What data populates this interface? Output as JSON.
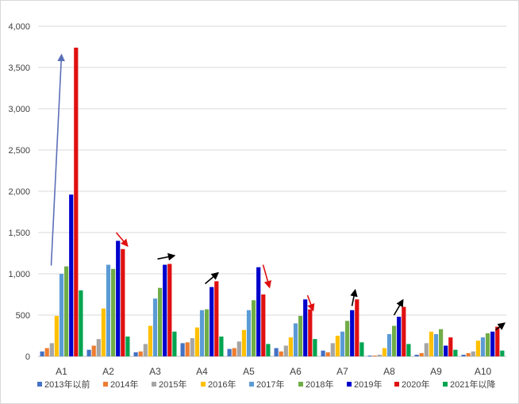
{
  "chart_data": {
    "type": "bar",
    "title": "",
    "xlabel": "",
    "ylabel": "",
    "ylim": [
      0,
      4000
    ],
    "yticks": [
      0,
      500,
      1000,
      1500,
      2000,
      2500,
      3000,
      3500,
      4000
    ],
    "ytick_labels": [
      "0",
      "500",
      "1,000",
      "1,500",
      "2,000",
      "2,500",
      "3,000",
      "3,500",
      "4,000"
    ],
    "grid": "horizontal",
    "legend_position": "bottom",
    "categories": [
      "A1",
      "A2",
      "A3",
      "A4",
      "A5",
      "A6",
      "A7",
      "A8",
      "A9",
      "A10"
    ],
    "series": [
      {
        "name": "2013年以前",
        "color": "#4472c4",
        "values": [
          60,
          80,
          50,
          160,
          90,
          100,
          70,
          10,
          20,
          20
        ]
      },
      {
        "name": "2014年",
        "color": "#ed7d31",
        "values": [
          100,
          130,
          60,
          170,
          100,
          60,
          50,
          10,
          40,
          40
        ]
      },
      {
        "name": "2015年",
        "color": "#a5a5a5",
        "values": [
          160,
          210,
          150,
          220,
          180,
          130,
          160,
          20,
          160,
          60
        ]
      },
      {
        "name": "2016年",
        "color": "#ffc000",
        "values": [
          490,
          580,
          370,
          350,
          320,
          230,
          250,
          100,
          300,
          190
        ]
      },
      {
        "name": "2017年",
        "color": "#5b9bd5",
        "values": [
          1000,
          1110,
          700,
          560,
          560,
          400,
          300,
          270,
          270,
          230
        ]
      },
      {
        "name": "2018年",
        "color": "#70ad47",
        "values": [
          1090,
          1060,
          830,
          570,
          680,
          490,
          430,
          370,
          330,
          280
        ]
      },
      {
        "name": "2019年",
        "color": "#0000cc",
        "values": [
          1960,
          1400,
          1110,
          840,
          1080,
          690,
          560,
          480,
          130,
          300
        ]
      },
      {
        "name": "2020年",
        "color": "#e01010",
        "values": [
          3740,
          1300,
          1120,
          910,
          750,
          570,
          690,
          600,
          230,
          360
        ]
      },
      {
        "name": "2021年以降",
        "color": "#00a550",
        "values": [
          800,
          240,
          300,
          240,
          150,
          210,
          170,
          150,
          80,
          70
        ]
      }
    ],
    "annotations": [
      {
        "type": "arrow",
        "color": "#5b6fb8",
        "from": {
          "category": "A1",
          "value": 1100
        },
        "to": {
          "category": "A1",
          "value": 3650
        }
      },
      {
        "type": "arrow",
        "color": "#e01010",
        "from": {
          "category": "A2",
          "value": 1500
        },
        "to": {
          "category": "A2",
          "value": 1340
        }
      },
      {
        "type": "arrow",
        "color": "#000000",
        "from": {
          "category": "A3",
          "value": 1180
        },
        "to": {
          "category": "A3",
          "value": 1220
        }
      },
      {
        "type": "arrow",
        "color": "#000000",
        "from": {
          "category": "A4",
          "value": 880
        },
        "to": {
          "category": "A4",
          "value": 1010
        }
      },
      {
        "type": "arrow",
        "color": "#e01010",
        "from": {
          "category": "A5",
          "value": 1110
        },
        "to": {
          "category": "A5",
          "value": 840
        }
      },
      {
        "type": "arrow",
        "color": "#e01010",
        "from": {
          "category": "A6",
          "value": 740
        },
        "to": {
          "category": "A6",
          "value": 560
        }
      },
      {
        "type": "arrow",
        "color": "#000000",
        "from": {
          "category": "A7",
          "value": 610
        },
        "to": {
          "category": "A7",
          "value": 800
        }
      },
      {
        "type": "arrow",
        "color": "#000000",
        "from": {
          "category": "A8",
          "value": 500
        },
        "to": {
          "category": "A8",
          "value": 680
        }
      },
      {
        "type": "arrow",
        "color": "#000000",
        "from": {
          "category": "A10",
          "value": 320
        },
        "to": {
          "category": "A10",
          "value": 400
        }
      }
    ]
  }
}
